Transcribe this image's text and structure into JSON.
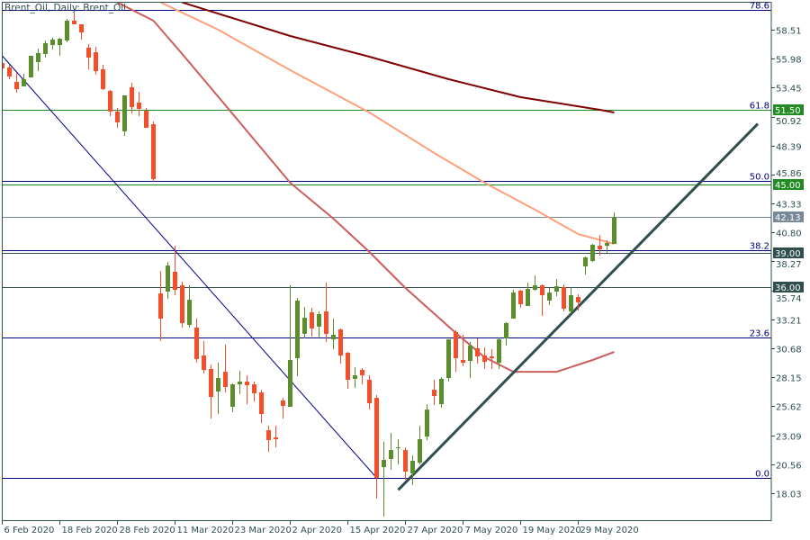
{
  "chart_data": {
    "type": "candlestick",
    "title": "Brent_Oil, Daily:  Brent_Oil",
    "symbol": "Brent_Oil",
    "timeframe": "Daily",
    "colors": {
      "up": "#5b8d2c",
      "down": "#f44e2a",
      "frame": "#2f4f4f",
      "fib": "#000080",
      "ma_slow": "#800000",
      "ma_mid": "#ffa07a",
      "ma_fast": "#cd5c5c",
      "support_green": "#228b22",
      "support_dark": "#2f4f4f",
      "last_price": "#778899",
      "trendline_up": "#2f4f4f",
      "trendline_down": "#00008b"
    },
    "ylim": [
      16.5,
      61.0
    ],
    "grid": false,
    "price_axis": {
      "ticks": [
        "58.51",
        "55.98",
        "53.45",
        "50.92",
        "48.39",
        "45.86",
        "43.33",
        "40.80",
        "38.27",
        "35.74",
        "33.21",
        "30.68",
        "28.15",
        "25.62",
        "23.09",
        "20.56",
        "18.03"
      ]
    },
    "time_axis": {
      "ticks": [
        {
          "date": "2020-02-06",
          "label": "6 Feb 2020"
        },
        {
          "date": "2020-02-18",
          "label": "18 Feb 2020"
        },
        {
          "date": "2020-02-28",
          "label": "28 Feb 2020"
        },
        {
          "date": "2020-03-11",
          "label": "11 Mar 2020"
        },
        {
          "date": "2020-03-23",
          "label": "23 Mar 2020"
        },
        {
          "date": "2020-04-02",
          "label": "2 Apr 2020"
        },
        {
          "date": "2020-04-15",
          "label": "15 Apr 2020"
        },
        {
          "date": "2020-04-27",
          "label": "27 Apr 2020"
        },
        {
          "date": "2020-05-07",
          "label": "7 May 2020"
        },
        {
          "date": "2020-05-19",
          "label": "19 May 2020"
        },
        {
          "date": "2020-05-29",
          "label": "29 May 2020"
        }
      ]
    },
    "candles_columns": [
      "date",
      "open",
      "high",
      "low",
      "close"
    ],
    "candles": [
      [
        "2020-02-06",
        55.6,
        55.68,
        54.97,
        55.13
      ],
      [
        "2020-02-07",
        55.21,
        55.44,
        54.19,
        54.42
      ],
      [
        "2020-02-10",
        53.95,
        54.74,
        53.01,
        53.32
      ],
      [
        "2020-02-11",
        53.56,
        54.66,
        53.56,
        54.19
      ],
      [
        "2020-02-12",
        54.34,
        56.23,
        54.34,
        56.23
      ],
      [
        "2020-02-13",
        55.68,
        56.86,
        54.89,
        56.47
      ],
      [
        "2020-02-14",
        56.39,
        57.57,
        56.07,
        57.33
      ],
      [
        "2020-02-17",
        57.17,
        57.8,
        56.78,
        57.65
      ],
      [
        "2020-02-18",
        57.17,
        57.8,
        56.23,
        57.72
      ],
      [
        "2020-02-19",
        57.57,
        59.45,
        57.41,
        59.3
      ],
      [
        "2020-02-20",
        59.3,
        60.0,
        58.98,
        58.98
      ],
      [
        "2020-02-21",
        58.98,
        58.98,
        57.65,
        58.27
      ],
      [
        "2020-02-24",
        56.94,
        57.25,
        55.05,
        56.07
      ],
      [
        "2020-02-25",
        56.54,
        57.02,
        54.58,
        54.89
      ],
      [
        "2020-02-26",
        55.05,
        55.44,
        53.24,
        53.32
      ],
      [
        "2020-02-27",
        53.16,
        53.24,
        50.96,
        51.36
      ],
      [
        "2020-02-28",
        51.36,
        51.67,
        49.94,
        50.41
      ],
      [
        "2020-03-02",
        49.63,
        52.77,
        49.23,
        52.77
      ],
      [
        "2020-03-03",
        53.48,
        53.87,
        51.2,
        51.75
      ],
      [
        "2020-03-04",
        52.14,
        53.09,
        50.96,
        51.59
      ],
      [
        "2020-03-05",
        51.43,
        51.67,
        49.94,
        49.94
      ],
      [
        "2020-03-06",
        50.25,
        50.49,
        45.22,
        45.46
      ],
      [
        "2020-03-09",
        35.47,
        37.44,
        31.31,
        33.27
      ],
      [
        "2020-03-10",
        35.63,
        38.23,
        35.0,
        37.91
      ],
      [
        "2020-03-11",
        37.36,
        39.64,
        35.32,
        35.79
      ],
      [
        "2020-03-12",
        36.18,
        36.5,
        32.49,
        32.88
      ],
      [
        "2020-03-13",
        32.72,
        36.18,
        32.49,
        34.92
      ],
      [
        "2020-03-16",
        32.49,
        33.27,
        29.42,
        29.74
      ],
      [
        "2020-03-17",
        30.05,
        31.31,
        28.48,
        28.79
      ],
      [
        "2020-03-18",
        28.87,
        29.26,
        24.55,
        26.43
      ],
      [
        "2020-03-19",
        26.9,
        29.42,
        24.94,
        28.08
      ],
      [
        "2020-03-20",
        28.63,
        31.0,
        26.83,
        27.3
      ],
      [
        "2020-03-23",
        25.57,
        27.61,
        25.1,
        27.53
      ],
      [
        "2020-03-24",
        27.53,
        28.71,
        26.67,
        27.77
      ],
      [
        "2020-03-25",
        27.77,
        28.32,
        25.8,
        27.46
      ],
      [
        "2020-03-26",
        27.53,
        27.77,
        26.04,
        26.75
      ],
      [
        "2020-03-27",
        26.83,
        27.06,
        24.15,
        24.94
      ],
      [
        "2020-03-30",
        23.52,
        23.92,
        21.64,
        22.66
      ],
      [
        "2020-03-31",
        22.89,
        23.92,
        22.03,
        22.74
      ],
      [
        "2020-04-01",
        26.12,
        26.35,
        24.55,
        25.65
      ],
      [
        "2020-04-02",
        25.57,
        36.18,
        25.57,
        29.66
      ],
      [
        "2020-04-03",
        29.81,
        35.08,
        28.24,
        34.85
      ],
      [
        "2020-04-06",
        31.94,
        34.3,
        31.54,
        33.35
      ],
      [
        "2020-04-07",
        33.82,
        34.22,
        31.7,
        32.41
      ],
      [
        "2020-04-08",
        32.57,
        33.9,
        31.62,
        33.67
      ],
      [
        "2020-04-09",
        33.9,
        36.42,
        31.23,
        31.94
      ],
      [
        "2020-04-13",
        31.46,
        33.27,
        30.6,
        31.86
      ],
      [
        "2020-04-14",
        32.33,
        32.41,
        29.34,
        30.05
      ],
      [
        "2020-04-15",
        30.29,
        30.36,
        27.14,
        27.93
      ],
      [
        "2020-04-16",
        28.01,
        29.03,
        27.22,
        28.32
      ],
      [
        "2020-04-17",
        28.79,
        28.95,
        27.53,
        28.32
      ],
      [
        "2020-04-20",
        27.93,
        28.32,
        25.33,
        25.88
      ],
      [
        "2020-04-21",
        26.35,
        26.59,
        17.55,
        19.36
      ],
      [
        "2020-04-22",
        20.3,
        22.5,
        15.98,
        20.93
      ],
      [
        "2020-04-23",
        21.01,
        23.29,
        20.07,
        21.79
      ],
      [
        "2020-04-24",
        22.03,
        22.74,
        20.54,
        22.03
      ],
      [
        "2020-04-27",
        21.79,
        22.03,
        19.2,
        19.91
      ],
      [
        "2020-04-28",
        19.75,
        21.32,
        18.73,
        20.85
      ],
      [
        "2020-04-29",
        20.69,
        23.92,
        20.54,
        22.74
      ],
      [
        "2020-04-30",
        22.97,
        25.8,
        22.66,
        25.33
      ],
      [
        "2020-05-01",
        27.06,
        27.93,
        25.73,
        26.51
      ],
      [
        "2020-05-04",
        25.8,
        28.16,
        25.49,
        28.01
      ],
      [
        "2020-05-05",
        28.08,
        31.46,
        27.77,
        31.46
      ],
      [
        "2020-05-06",
        32.09,
        32.25,
        28.63,
        29.81
      ],
      [
        "2020-05-07",
        29.66,
        31.86,
        29.11,
        29.42
      ],
      [
        "2020-05-08",
        29.58,
        31.23,
        28.08,
        30.91
      ],
      [
        "2020-05-11",
        30.68,
        31.54,
        29.34,
        29.97
      ],
      [
        "2020-05-12",
        30.05,
        30.76,
        28.87,
        29.5
      ],
      [
        "2020-05-13",
        29.97,
        30.6,
        28.87,
        29.81
      ],
      [
        "2020-05-14",
        29.42,
        31.62,
        28.87,
        31.46
      ],
      [
        "2020-05-15",
        31.54,
        32.96,
        30.91,
        32.88
      ],
      [
        "2020-05-18",
        33.27,
        35.79,
        33.27,
        35.55
      ],
      [
        "2020-05-19",
        35.71,
        35.79,
        34.22,
        34.53
      ],
      [
        "2020-05-20",
        34.37,
        36.42,
        34.37,
        35.87
      ],
      [
        "2020-05-21",
        35.79,
        37.05,
        35.71,
        36.18
      ],
      [
        "2020-05-22",
        36.18,
        36.26,
        33.51,
        35.32
      ],
      [
        "2020-05-25",
        34.85,
        35.95,
        34.45,
        35.55
      ],
      [
        "2020-05-26",
        35.63,
        36.73,
        35.24,
        36.1
      ],
      [
        "2020-05-27",
        36.02,
        36.26,
        33.9,
        34.14
      ],
      [
        "2020-05-28",
        33.9,
        36.02,
        33.75,
        35.32
      ],
      [
        "2020-05-29",
        35.16,
        35.4,
        33.98,
        34.69
      ],
      [
        "2020-06-01",
        37.83,
        38.7,
        37.13,
        38.62
      ],
      [
        "2020-06-02",
        38.3,
        39.8,
        38.23,
        39.72
      ],
      [
        "2020-06-03",
        39.64,
        40.58,
        38.78,
        39.33
      ],
      [
        "2020-06-04",
        39.64,
        40.11,
        39.01,
        39.88
      ],
      [
        "2020-06-05",
        39.8,
        42.55,
        39.8,
        42.13
      ]
    ],
    "moving_averages": [
      {
        "color": "#800000",
        "points": [
          [
            "2020-03-12",
            60.89
          ],
          [
            "2020-04-02",
            57.96
          ],
          [
            "2020-04-20",
            56.15
          ],
          [
            "2020-05-05",
            54.19
          ],
          [
            "2020-05-19",
            52.61
          ],
          [
            "2020-06-03",
            51.51
          ],
          [
            "2020-06-05",
            51.28
          ]
        ]
      },
      {
        "color": "#ffa07a",
        "points": [
          [
            "2020-03-09",
            60.89
          ],
          [
            "2020-03-19",
            58.51
          ],
          [
            "2020-04-02",
            54.97
          ],
          [
            "2020-04-20",
            51.28
          ],
          [
            "2020-05-01",
            47.74
          ],
          [
            "2020-05-12",
            45.14
          ],
          [
            "2020-05-21",
            42.79
          ],
          [
            "2020-05-29",
            40.66
          ],
          [
            "2020-06-05",
            39.8
          ]
        ]
      },
      {
        "color": "#cd5c5c",
        "points": [
          [
            "2020-02-28",
            60.89
          ],
          [
            "2020-03-06",
            59.3
          ],
          [
            "2020-03-12",
            56.39
          ],
          [
            "2020-03-20",
            51.91
          ],
          [
            "2020-04-02",
            45.14
          ],
          [
            "2020-04-13",
            42.0
          ],
          [
            "2020-04-20",
            39.09
          ],
          [
            "2020-04-27",
            35.95
          ],
          [
            "2020-05-06",
            32.02
          ],
          [
            "2020-05-12",
            29.89
          ],
          [
            "2020-05-18",
            28.63
          ],
          [
            "2020-05-26",
            28.63
          ],
          [
            "2020-06-02",
            29.66
          ],
          [
            "2020-06-05",
            30.36
          ]
        ]
      }
    ],
    "fibonacci": {
      "levels": [
        {
          "label": "78.6",
          "price": 60.23
        },
        {
          "label": "61.8",
          "price": 51.5
        },
        {
          "label": "50.0",
          "price": 45.3
        },
        {
          "label": "38.2",
          "price": 39.22
        },
        {
          "label": "23.6",
          "price": 31.63
        },
        {
          "label": "0.0",
          "price": 19.36
        }
      ]
    },
    "horizontal_levels": [
      {
        "label": "51.50",
        "price": 51.5,
        "color": "#228b22"
      },
      {
        "label": "45.00",
        "price": 45.0,
        "color": "#228b22"
      },
      {
        "label": "42.13",
        "price": 42.13,
        "color": "#778899"
      },
      {
        "label": "39.00",
        "price": 39.0,
        "color": "#2f4f4f"
      },
      {
        "label": "36.00",
        "price": 36.0,
        "color": "#2f4f4f"
      }
    ],
    "trendlines": [
      {
        "color": "#00008b",
        "points": [
          [
            "2020-02-06",
            56.23
          ],
          [
            "2020-04-21",
            19.36
          ]
        ],
        "extend_right": false
      },
      {
        "color": "#2f4f4f",
        "points": [
          [
            "2020-04-24",
            18.31
          ],
          [
            "2020-06-05",
            37.52
          ]
        ],
        "extend_right": true
      }
    ]
  }
}
